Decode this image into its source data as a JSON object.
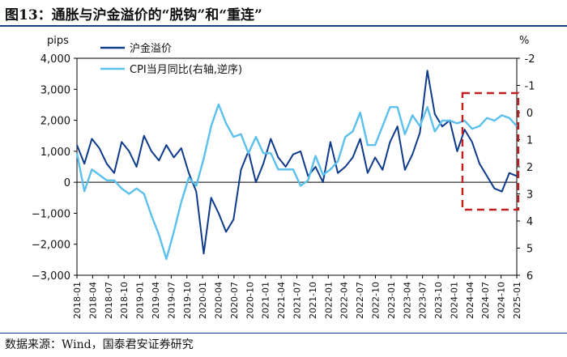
{
  "title": "图13：通胀与沪金溢价的“脱钩”和“重连”",
  "source": "数据来源：Wind，国泰君安证券研究",
  "chart_data": {
    "type": "line",
    "left_axis": {
      "unit_label": "pips",
      "range": [
        -3000,
        4000
      ],
      "ticks": [
        -3000,
        -2000,
        -1000,
        0,
        1000,
        2000,
        3000,
        4000
      ],
      "tick_labels": [
        "−3,000",
        "−2,000",
        "−1,000",
        "0",
        "1,000",
        "2,000",
        "3,000",
        "4,000"
      ]
    },
    "right_axis": {
      "unit_label": "%",
      "inverted": true,
      "range": [
        -2,
        6
      ],
      "ticks": [
        -2,
        -1,
        0,
        1,
        2,
        3,
        4,
        5,
        6
      ],
      "tick_labels": [
        "-2",
        "-1",
        "0",
        "1",
        "2",
        "3",
        "4",
        "5",
        "6"
      ]
    },
    "x_tick_labels": [
      "2018-01",
      "2018-04",
      "2018-07",
      "2018-10",
      "2019-01",
      "2019-04",
      "2019-07",
      "2019-10",
      "2020-01",
      "2020-04",
      "2020-07",
      "2020-10",
      "2021-01",
      "2021-04",
      "2021-07",
      "2021-10",
      "2022-01",
      "2022-04",
      "2022-07",
      "2022-10",
      "2023-01",
      "2023-04",
      "2023-07",
      "2023-10",
      "2024-01",
      "2024-04",
      "2024-07",
      "2024-10",
      "2025-01"
    ],
    "series": [
      {
        "name": "沪金溢价",
        "axis": "left",
        "color": "#0e3a8a",
        "values": [
          1200,
          600,
          1400,
          1100,
          600,
          300,
          1300,
          1000,
          500,
          1500,
          1000,
          700,
          1200,
          800,
          1100,
          300,
          -300,
          -2300,
          -500,
          -1000,
          -1600,
          -1200,
          400,
          1000,
          0,
          600,
          1400,
          800,
          500,
          900,
          1000,
          200,
          500,
          0,
          1300,
          300,
          500,
          800,
          1400,
          300,
          800,
          400,
          1300,
          1800,
          400,
          900,
          1600,
          3600,
          2200,
          1800,
          2000,
          1000,
          1700,
          1300,
          600,
          200,
          -200,
          -300,
          300,
          200
        ]
      },
      {
        "name": "CPI当月同比(右轴,逆序)",
        "axis": "right",
        "color": "#5bc0eb",
        "values": [
          1.5,
          2.9,
          2.1,
          2.3,
          2.5,
          2.5,
          2.8,
          3.0,
          2.8,
          3.0,
          3.8,
          4.5,
          5.4,
          4.4,
          3.3,
          2.4,
          2.7,
          1.7,
          0.5,
          -0.3,
          0.4,
          0.9,
          0.8,
          1.5,
          0.9,
          1.5,
          1.5,
          2.1,
          2.1,
          2.1,
          2.7,
          2.5,
          1.6,
          2.3,
          2.1,
          1.8,
          0.9,
          0.7,
          0.0,
          1.2,
          1.2,
          0.5,
          -0.2,
          -0.2,
          0.8,
          0.1,
          0.5,
          -0.2,
          0.7,
          0.3,
          0.3,
          0.4,
          0.3,
          0.6,
          0.5,
          0.2,
          0.3,
          0.1,
          0.2,
          0.5
        ]
      }
    ],
    "legend": [
      "沪金溢价",
      "CPI当月同比(右轴,逆序)"
    ],
    "legend_position": "top-left",
    "annotation": "red dashed box highlighting 2024-05 to 2025-02"
  }
}
